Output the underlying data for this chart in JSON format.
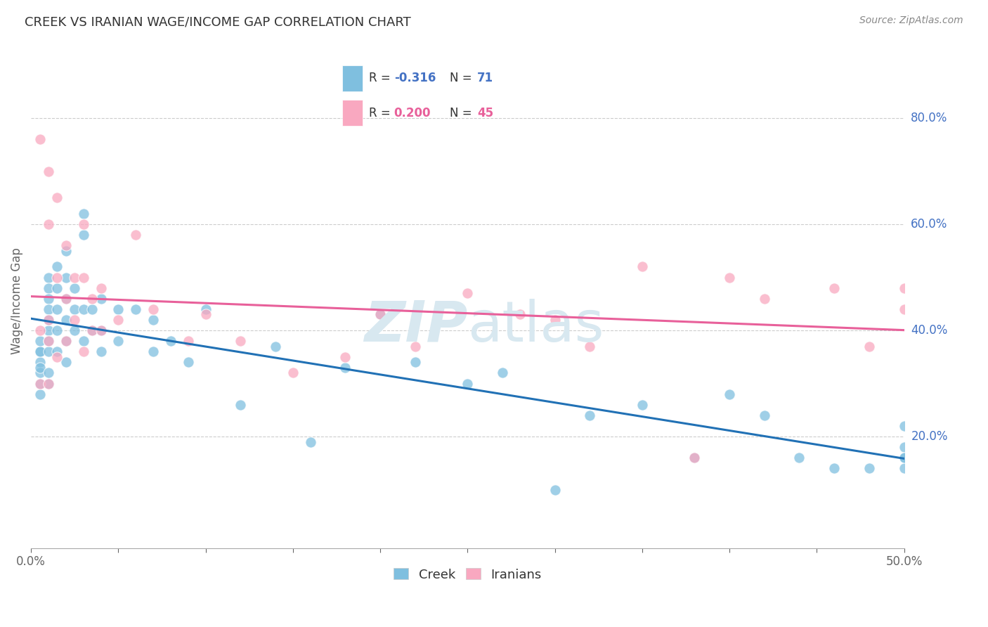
{
  "title": "CREEK VS IRANIAN WAGE/INCOME GAP CORRELATION CHART",
  "source": "Source: ZipAtlas.com",
  "ylabel": "Wage/Income Gap",
  "right_yticks": [
    "20.0%",
    "40.0%",
    "60.0%",
    "80.0%"
  ],
  "right_ytick_vals": [
    0.2,
    0.4,
    0.6,
    0.8
  ],
  "xlim": [
    0.0,
    0.5
  ],
  "ylim": [
    -0.01,
    0.92
  ],
  "creek_R": -0.316,
  "creek_N": 71,
  "iranian_R": 0.2,
  "iranian_N": 45,
  "legend_creek": "Creek",
  "legend_iranians": "Iranians",
  "blue_color": "#7fbfdf",
  "pink_color": "#f9a8c0",
  "blue_line_color": "#2171b5",
  "pink_line_color": "#e8609a",
  "watermark_color": "#d8e8f0",
  "background_color": "#ffffff",
  "creek_x": [
    0.005,
    0.005,
    0.005,
    0.005,
    0.005,
    0.005,
    0.005,
    0.005,
    0.01,
    0.01,
    0.01,
    0.01,
    0.01,
    0.01,
    0.01,
    0.01,
    0.01,
    0.01,
    0.015,
    0.015,
    0.015,
    0.015,
    0.015,
    0.02,
    0.02,
    0.02,
    0.02,
    0.02,
    0.02,
    0.025,
    0.025,
    0.025,
    0.03,
    0.03,
    0.03,
    0.03,
    0.035,
    0.035,
    0.04,
    0.04,
    0.04,
    0.05,
    0.05,
    0.06,
    0.07,
    0.07,
    0.08,
    0.09,
    0.1,
    0.12,
    0.14,
    0.16,
    0.18,
    0.2,
    0.22,
    0.25,
    0.27,
    0.3,
    0.32,
    0.35,
    0.38,
    0.4,
    0.42,
    0.44,
    0.46,
    0.48,
    0.5,
    0.5,
    0.5,
    0.5,
    0.5
  ],
  "creek_y": [
    0.36,
    0.34,
    0.32,
    0.3,
    0.28,
    0.36,
    0.38,
    0.33,
    0.5,
    0.48,
    0.46,
    0.44,
    0.4,
    0.36,
    0.32,
    0.3,
    0.38,
    0.42,
    0.52,
    0.48,
    0.44,
    0.4,
    0.36,
    0.55,
    0.5,
    0.46,
    0.42,
    0.38,
    0.34,
    0.48,
    0.44,
    0.4,
    0.62,
    0.58,
    0.44,
    0.38,
    0.44,
    0.4,
    0.46,
    0.4,
    0.36,
    0.44,
    0.38,
    0.44,
    0.42,
    0.36,
    0.38,
    0.34,
    0.44,
    0.26,
    0.37,
    0.19,
    0.33,
    0.43,
    0.34,
    0.3,
    0.32,
    0.1,
    0.24,
    0.26,
    0.16,
    0.28,
    0.24,
    0.16,
    0.14,
    0.14,
    0.18,
    0.16,
    0.14,
    0.22,
    0.16
  ],
  "iranian_x": [
    0.005,
    0.005,
    0.005,
    0.01,
    0.01,
    0.01,
    0.01,
    0.01,
    0.015,
    0.015,
    0.015,
    0.02,
    0.02,
    0.02,
    0.025,
    0.025,
    0.03,
    0.03,
    0.03,
    0.035,
    0.035,
    0.04,
    0.04,
    0.05,
    0.06,
    0.07,
    0.09,
    0.1,
    0.12,
    0.15,
    0.18,
    0.2,
    0.22,
    0.25,
    0.28,
    0.3,
    0.32,
    0.35,
    0.38,
    0.4,
    0.42,
    0.46,
    0.48,
    0.5,
    0.5
  ],
  "iranian_y": [
    0.76,
    0.4,
    0.3,
    0.7,
    0.6,
    0.42,
    0.38,
    0.3,
    0.65,
    0.5,
    0.35,
    0.56,
    0.46,
    0.38,
    0.5,
    0.42,
    0.6,
    0.5,
    0.36,
    0.46,
    0.4,
    0.48,
    0.4,
    0.42,
    0.58,
    0.44,
    0.38,
    0.43,
    0.38,
    0.32,
    0.35,
    0.43,
    0.37,
    0.47,
    0.43,
    0.42,
    0.37,
    0.52,
    0.16,
    0.5,
    0.46,
    0.48,
    0.37,
    0.48,
    0.44
  ]
}
